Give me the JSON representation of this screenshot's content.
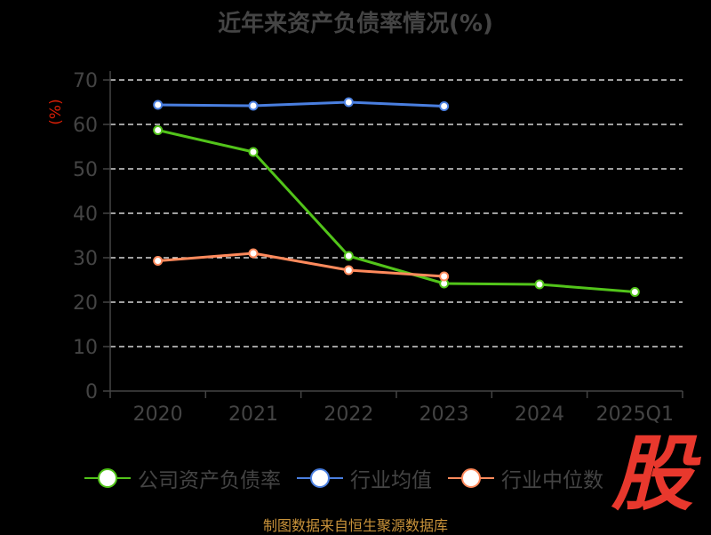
{
  "title": "近年来资产负债率情况(%)",
  "source": "制图数据来自恒生聚源数据库",
  "watermark": "股",
  "chart_data": {
    "type": "line",
    "title": "近年来资产负债率情况(%)",
    "ylabel": "(%)",
    "ylim": [
      0,
      70
    ],
    "yticks": [
      0,
      10,
      20,
      30,
      40,
      50,
      60,
      70
    ],
    "grid": true,
    "legend_position": "bottom",
    "categories": [
      "2020",
      "2021",
      "2022",
      "2023",
      "2024",
      "2025Q1"
    ],
    "series": [
      {
        "name": "公司资产负债率",
        "color": "#52c41a",
        "values": [
          58.7,
          53.8,
          30.4,
          24.2,
          24.0,
          22.3
        ]
      },
      {
        "name": "行业均值",
        "color": "#4a7fe0",
        "values": [
          64.4,
          64.2,
          65.0,
          64.1,
          null,
          null
        ]
      },
      {
        "name": "行业中位数",
        "color": "#ff8a5c",
        "values": [
          29.3,
          31.0,
          27.2,
          25.8,
          null,
          null
        ]
      }
    ]
  },
  "legend": [
    {
      "label": "公司资产负债率",
      "color": "#52c41a"
    },
    {
      "label": "行业均值",
      "color": "#4a7fe0"
    },
    {
      "label": "行业中位数",
      "color": "#ff8a5c"
    }
  ]
}
